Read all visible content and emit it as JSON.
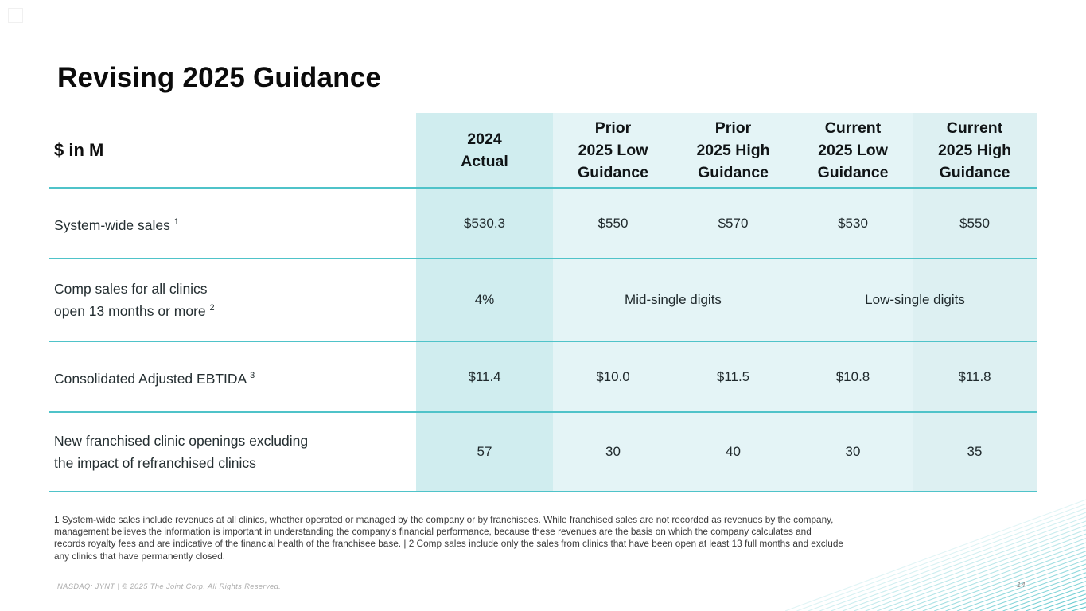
{
  "slide": {
    "title": "Revising 2025 Guidance",
    "page_number": "14",
    "footer_text": "NASDAQ: JYNT   |  © 2025 The Joint Corp. All Rights Reserved.",
    "footnote": "1 System-wide sales include revenues at all clinics, whether operated or managed by the company or by franchisees. While franchised sales are not recorded as revenues by the company,\nmanagement believes the information is important  in understanding the company's financial performance, because these revenues are the basis on which the company calculates and\nrecords royalty fees and are indicative of the financial health of the franchisee base. | 2 Comp sales include only the sales from clinics that have been open at least 13 full months and exclude\nany clinics that have permanently closed."
  },
  "table": {
    "unit_label": "$ in M",
    "columns": [
      "2024\nActual",
      "Prior\n2025 Low\nGuidance",
      "Prior\n2025 High\nGuidance",
      "Current\n2025 Low\nGuidance",
      "Current\n2025 High\nGuidance"
    ],
    "rows": [
      {
        "label": "System-wide sales ",
        "sup": "1",
        "values": [
          "$530.3",
          "$550",
          "$570",
          "$530",
          "$550"
        ]
      },
      {
        "label": "Comp sales for all clinics\nopen 13 months or more ",
        "sup": "2",
        "values": [
          "4%",
          "Mid-single digits",
          "Low-single digits"
        ]
      },
      {
        "label": "Consolidated Adjusted EBTIDA ",
        "sup": "3",
        "values": [
          "$11.4",
          "$10.0",
          "$11.5",
          "$10.8",
          "$11.8"
        ]
      },
      {
        "label": "New franchised clinic openings excluding\nthe impact of refranchised clinics",
        "sup": "",
        "values": [
          "57",
          "30",
          "40",
          "30",
          "35"
        ]
      }
    ]
  },
  "colors": {
    "accent_teal_line": "#4fc3c9",
    "column_actual_fill": "#d0edef",
    "column_light_fill": "#e4f4f6",
    "column_high_fill": "#ddf0f2",
    "decorative_line": "#2cb6be"
  }
}
